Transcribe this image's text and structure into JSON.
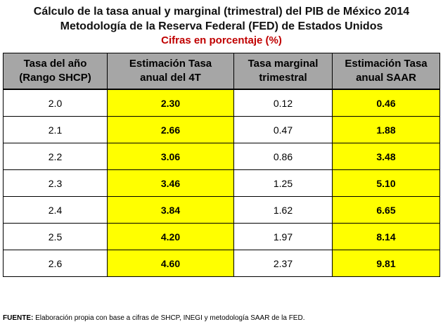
{
  "titles": {
    "line1": "Cálculo de la tasa anual y marginal (trimestral) del PIB de México 2014",
    "line2": "Metodología de la Reserva Federal (FED) de Estados Unidos",
    "line3": "Cifras en porcentaje (%)"
  },
  "table": {
    "headers": [
      [
        "Tasa del año",
        "(Rango SHCP)"
      ],
      [
        "Estimación Tasa",
        "anual del 4T"
      ],
      [
        "Tasa marginal",
        "trimestral"
      ],
      [
        "Estimación Tasa",
        "anual SAAR"
      ]
    ],
    "rows": [
      [
        "2.0",
        "2.30",
        "0.12",
        "0.46"
      ],
      [
        "2.1",
        "2.66",
        "0.47",
        "1.88"
      ],
      [
        "2.2",
        "3.06",
        "0.86",
        "3.48"
      ],
      [
        "2.3",
        "3.46",
        "1.25",
        "5.10"
      ],
      [
        "2.4",
        "3.84",
        "1.62",
        "6.65"
      ],
      [
        "2.5",
        "4.20",
        "1.97",
        "8.14"
      ],
      [
        "2.6",
        "4.60",
        "2.37",
        "9.81"
      ]
    ]
  },
  "source": {
    "label": "FUENTE:",
    "text": " Elaboración propia con base a cifras de SHCP, INEGI y metodología SAAR de la FED."
  },
  "colors": {
    "highlight": "#ffff00",
    "header_bg": "#a6a6a6",
    "subtitle_red": "#c00000"
  }
}
